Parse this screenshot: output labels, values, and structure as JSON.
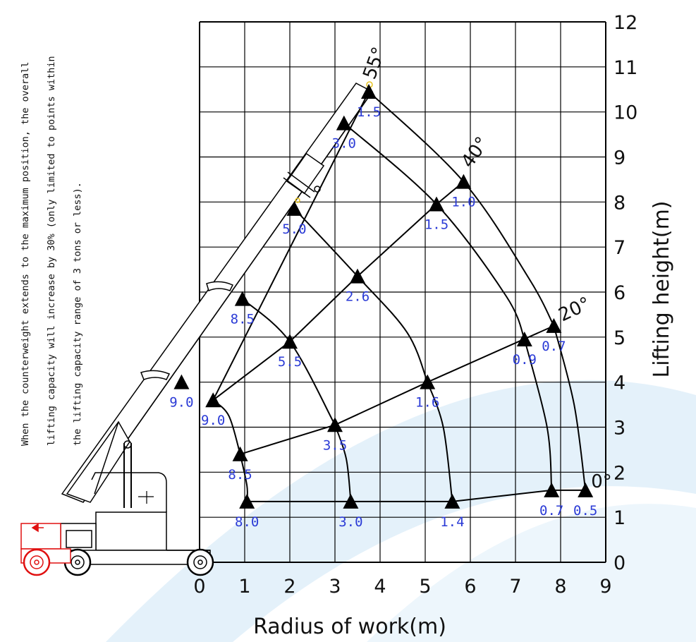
{
  "note": {
    "lines": [
      "When the counterweight extends to the maximum position, the overall",
      "lifting capacity will increase by 30% (only limited to points within",
      "the lifting capacity range of 3 tons or less)."
    ]
  },
  "colors": {
    "capacity_label": "#2b3bd6",
    "watermark": "#e4f1fa",
    "ink": "#000000",
    "vehicle_red": "#e01010"
  },
  "chart_data": {
    "type": "scatter",
    "title": "",
    "xlabel": "Radius of work(m)",
    "ylabel": "Lifting height(m)",
    "xlim": [
      0,
      9
    ],
    "ylim": [
      0,
      12
    ],
    "x_ticks": [
      "0",
      "1",
      "2",
      "3",
      "4",
      "5",
      "6",
      "7",
      "8",
      "9"
    ],
    "y_ticks": [
      "0",
      "1",
      "2",
      "3",
      "4",
      "5",
      "6",
      "7",
      "8",
      "9",
      "10",
      "11",
      "12"
    ],
    "grid": true,
    "boom_angle_lines": [
      {
        "label": "55°",
        "points": [
          [
            0.3,
            3.6
          ],
          [
            3.75,
            10.45
          ]
        ]
      },
      {
        "label": "40°",
        "points": [
          [
            0.3,
            3.6
          ],
          [
            2.0,
            4.9
          ],
          [
            3.5,
            6.35
          ],
          [
            5.25,
            7.95
          ],
          [
            5.85,
            8.45
          ]
        ]
      },
      {
        "label": "20°",
        "points": [
          [
            0.9,
            2.4
          ],
          [
            3.0,
            3.05
          ],
          [
            5.05,
            4.0
          ],
          [
            7.85,
            5.25
          ]
        ]
      },
      {
        "label": "0°",
        "points": [
          [
            1.05,
            1.35
          ],
          [
            5.6,
            1.35
          ],
          [
            7.8,
            1.6
          ],
          [
            8.55,
            1.6
          ]
        ]
      }
    ],
    "capacity_arcs": [
      {
        "points": [
          [
            0.3,
            3.6
          ],
          [
            0.65,
            3.25
          ],
          [
            0.9,
            2.4
          ]
        ]
      },
      {
        "points": [
          [
            0.95,
            5.85
          ],
          [
            2.0,
            4.9
          ],
          [
            3.0,
            3.05
          ]
        ]
      },
      {
        "points": [
          [
            2.1,
            7.85
          ],
          [
            3.5,
            6.35
          ],
          [
            4.6,
            5.1
          ],
          [
            5.05,
            4.0
          ]
        ]
      },
      {
        "points": [
          [
            3.2,
            9.75
          ],
          [
            5.25,
            7.95
          ],
          [
            6.8,
            5.9
          ],
          [
            7.2,
            4.95
          ]
        ]
      },
      {
        "points": [
          [
            3.75,
            10.45
          ],
          [
            5.85,
            8.45
          ],
          [
            7.3,
            6.3
          ],
          [
            7.85,
            5.25
          ]
        ]
      },
      {
        "points": [
          [
            0.9,
            2.4
          ],
          [
            1.05,
            1.7
          ],
          [
            1.05,
            1.35
          ]
        ]
      },
      {
        "points": [
          [
            3.0,
            3.05
          ],
          [
            3.25,
            2.3
          ],
          [
            3.35,
            1.35
          ]
        ]
      },
      {
        "points": [
          [
            5.05,
            4.0
          ],
          [
            5.4,
            3.0
          ],
          [
            5.6,
            1.35
          ]
        ]
      },
      {
        "points": [
          [
            7.2,
            4.95
          ],
          [
            7.7,
            3.0
          ],
          [
            7.8,
            1.6
          ]
        ]
      },
      {
        "points": [
          [
            7.85,
            5.25
          ],
          [
            8.3,
            3.5
          ],
          [
            8.55,
            1.6
          ]
        ]
      }
    ],
    "capacity_points": [
      {
        "label": "9.0",
        "x": -0.4,
        "y": 4.0
      },
      {
        "label": "9.0",
        "x": 0.3,
        "y": 3.6
      },
      {
        "label": "8.5",
        "x": 0.9,
        "y": 2.4
      },
      {
        "label": "8.0",
        "x": 1.05,
        "y": 1.35
      },
      {
        "label": "8.5",
        "x": 0.95,
        "y": 5.85
      },
      {
        "label": "5.5",
        "x": 2.0,
        "y": 4.9
      },
      {
        "label": "3.5",
        "x": 3.0,
        "y": 3.05
      },
      {
        "label": "3.0",
        "x": 3.35,
        "y": 1.35
      },
      {
        "label": "5.0",
        "x": 2.1,
        "y": 7.85
      },
      {
        "label": "2.6",
        "x": 3.5,
        "y": 6.35
      },
      {
        "label": "1.6",
        "x": 5.05,
        "y": 4.0
      },
      {
        "label": "1.4",
        "x": 5.6,
        "y": 1.35
      },
      {
        "label": "3.0",
        "x": 3.2,
        "y": 9.75
      },
      {
        "label": "1.5",
        "x": 5.25,
        "y": 7.95
      },
      {
        "label": "0.9",
        "x": 7.2,
        "y": 4.95
      },
      {
        "label": "0.7",
        "x": 7.8,
        "y": 1.6
      },
      {
        "label": "1.5",
        "x": 3.75,
        "y": 10.45
      },
      {
        "label": "1.0",
        "x": 5.85,
        "y": 8.45
      },
      {
        "label": "0.7",
        "x": 7.85,
        "y": 5.25
      },
      {
        "label": "0.5",
        "x": 8.55,
        "y": 1.6
      }
    ]
  }
}
